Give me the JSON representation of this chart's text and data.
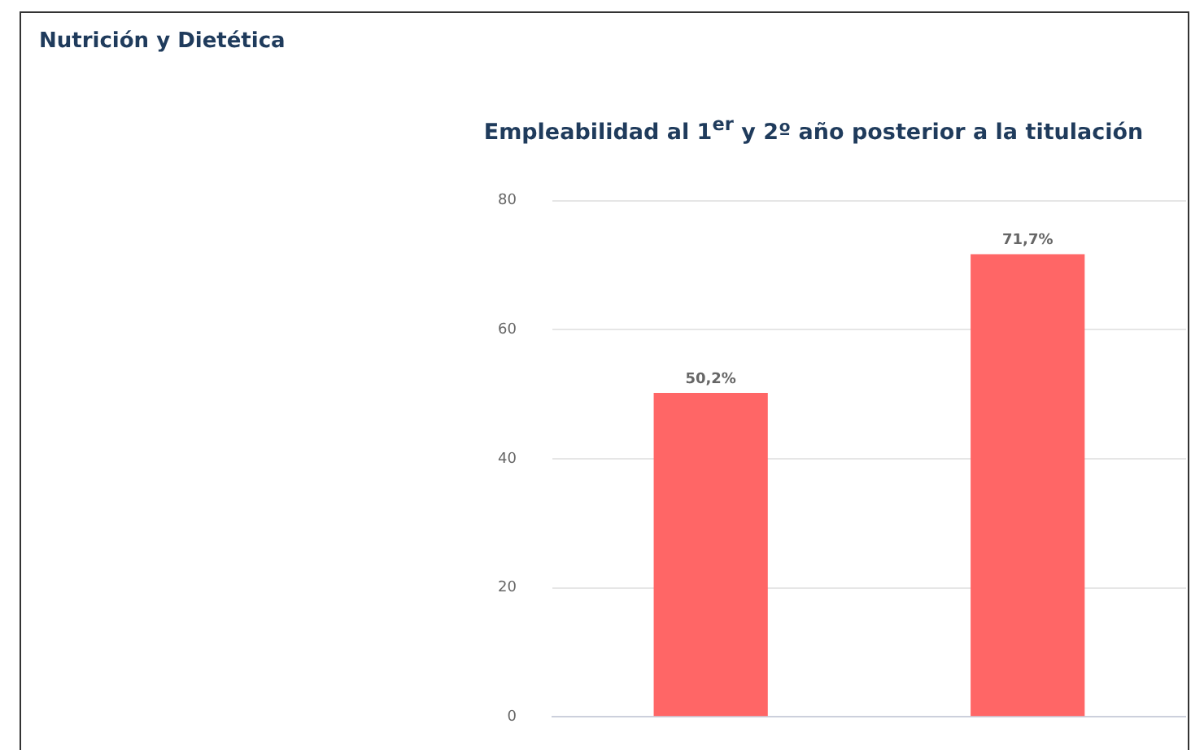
{
  "chart_data": {
    "type": "bar",
    "title": "Nutrición y Dietética",
    "subtitle": "Empleabilidad al 1$^{er}$ y 2º año posterior a la titulación",
    "categories": [
      null,
      null
    ],
    "values": [
      50.2,
      71.7
    ],
    "value_labels": [
      "50,2%",
      "71,7%"
    ],
    "color": "#ff6666",
    "ylim": [
      0,
      80
    ],
    "yticks": [
      0,
      20,
      40,
      60,
      80
    ],
    "grid": "y",
    "legend": false
  }
}
